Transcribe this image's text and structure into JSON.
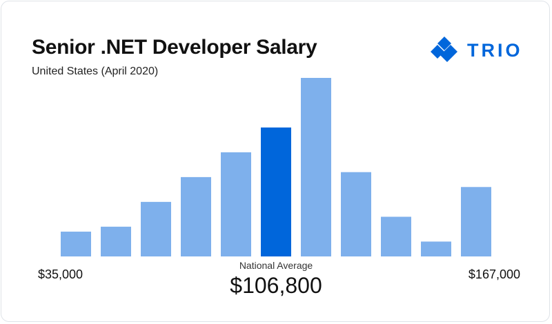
{
  "title": "Senior .NET Developer Salary",
  "subtitle": "United States (April 2020)",
  "brand": {
    "name": "TRIO",
    "color": "#0066db",
    "icon": "trio-logo-icon"
  },
  "colors": {
    "bar": "#7eb0ec",
    "highlight": "#0066db"
  },
  "chart_data": {
    "type": "bar",
    "title": "Senior .NET Developer Salary",
    "subtitle": "United States (April 2020)",
    "xlabel": "",
    "ylabel": "",
    "x_min_label": "$35,000",
    "x_max_label": "$167,000",
    "values": [
      5,
      6,
      11,
      16,
      21,
      26,
      36,
      17,
      8,
      3,
      14
    ],
    "highlight_index": 5,
    "ylim": [
      0,
      36
    ],
    "grid": false,
    "annotation": {
      "label": "National Average",
      "value": "$106,800"
    }
  }
}
